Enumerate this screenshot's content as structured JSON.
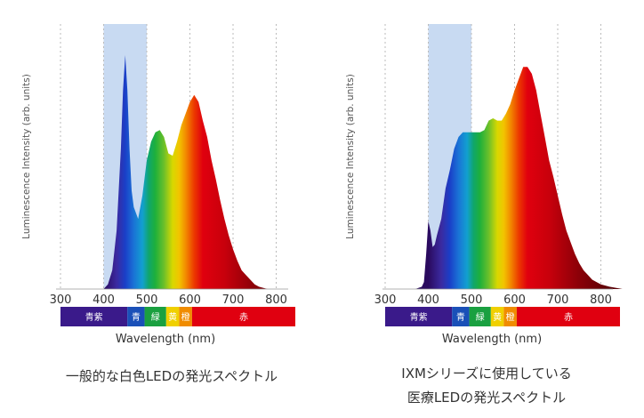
{
  "chart_data": [
    {
      "type": "area",
      "ylabel": "Luminescence Intensity (arb. units)",
      "xlabel": "Wavelength (nm)",
      "xlim": [
        300,
        800
      ],
      "xticks": [
        300,
        400,
        500,
        600,
        700,
        800
      ],
      "grid": "vertical dashed",
      "shaded_region": [
        400,
        500
      ],
      "spectrum": [
        [
          400,
          0
        ],
        [
          410,
          2
        ],
        [
          420,
          8
        ],
        [
          430,
          25
        ],
        [
          440,
          60
        ],
        [
          445,
          85
        ],
        [
          450,
          100
        ],
        [
          455,
          85
        ],
        [
          460,
          60
        ],
        [
          465,
          42
        ],
        [
          470,
          35
        ],
        [
          480,
          30
        ],
        [
          490,
          40
        ],
        [
          500,
          55
        ],
        [
          510,
          63
        ],
        [
          520,
          67
        ],
        [
          530,
          68
        ],
        [
          540,
          65
        ],
        [
          550,
          58
        ],
        [
          560,
          57
        ],
        [
          570,
          63
        ],
        [
          580,
          70
        ],
        [
          590,
          75
        ],
        [
          600,
          80
        ],
        [
          610,
          83
        ],
        [
          620,
          80
        ],
        [
          630,
          72
        ],
        [
          640,
          65
        ],
        [
          650,
          55
        ],
        [
          660,
          47
        ],
        [
          670,
          38
        ],
        [
          680,
          30
        ],
        [
          690,
          23
        ],
        [
          700,
          17
        ],
        [
          710,
          12
        ],
        [
          720,
          8
        ],
        [
          730,
          6
        ],
        [
          740,
          4
        ],
        [
          750,
          2
        ],
        [
          760,
          1
        ],
        [
          780,
          0
        ]
      ],
      "caption": [
        "一般的な白色LEDの発光スペクトル"
      ]
    },
    {
      "type": "area",
      "ylabel": "Luminescence Intensity (arb. units)",
      "xlabel": "Wavelength (nm)",
      "xlim": [
        300,
        850
      ],
      "xticks": [
        300,
        400,
        500,
        600,
        700,
        800
      ],
      "grid": "vertical dashed",
      "shaded_region": [
        400,
        500
      ],
      "spectrum": [
        [
          370,
          0
        ],
        [
          385,
          1
        ],
        [
          390,
          3
        ],
        [
          395,
          15
        ],
        [
          400,
          29
        ],
        [
          405,
          25
        ],
        [
          410,
          18
        ],
        [
          415,
          19
        ],
        [
          420,
          23
        ],
        [
          430,
          30
        ],
        [
          440,
          43
        ],
        [
          450,
          51
        ],
        [
          460,
          60
        ],
        [
          470,
          65
        ],
        [
          480,
          67
        ],
        [
          490,
          67
        ],
        [
          500,
          67
        ],
        [
          510,
          67
        ],
        [
          520,
          67
        ],
        [
          530,
          68
        ],
        [
          540,
          72
        ],
        [
          550,
          73
        ],
        [
          560,
          72
        ],
        [
          570,
          72
        ],
        [
          580,
          75
        ],
        [
          590,
          79
        ],
        [
          600,
          85
        ],
        [
          610,
          90
        ],
        [
          620,
          95
        ],
        [
          630,
          95
        ],
        [
          640,
          92
        ],
        [
          650,
          85
        ],
        [
          660,
          75
        ],
        [
          670,
          65
        ],
        [
          680,
          55
        ],
        [
          690,
          48
        ],
        [
          700,
          40
        ],
        [
          710,
          32
        ],
        [
          720,
          25
        ],
        [
          730,
          20
        ],
        [
          740,
          15
        ],
        [
          750,
          11
        ],
        [
          760,
          8
        ],
        [
          770,
          6
        ],
        [
          780,
          4
        ],
        [
          790,
          3
        ],
        [
          800,
          2
        ],
        [
          820,
          1
        ],
        [
          850,
          0
        ]
      ],
      "caption": [
        "IXMシリーズに使用している",
        "医療LEDの発光スペクトル"
      ]
    }
  ],
  "color_band": [
    {
      "label": "青紫",
      "from": 300,
      "to": 455,
      "color": "#3a1a8a"
    },
    {
      "label": "青",
      "from": 455,
      "to": 495,
      "color": "#1a50b8"
    },
    {
      "label": "緑",
      "from": 495,
      "to": 545,
      "color": "#1aa040"
    },
    {
      "label": "黄",
      "from": 545,
      "to": 575,
      "color": "#f0d000"
    },
    {
      "label": "橙",
      "from": 575,
      "to": 605,
      "color": "#f08c00"
    },
    {
      "label": "赤",
      "from": 605,
      "to": 800,
      "color": "#e00010"
    }
  ],
  "colors": {
    "shade": "#c8daf2",
    "grid": "#bbbbbb",
    "axis": "#999999"
  }
}
